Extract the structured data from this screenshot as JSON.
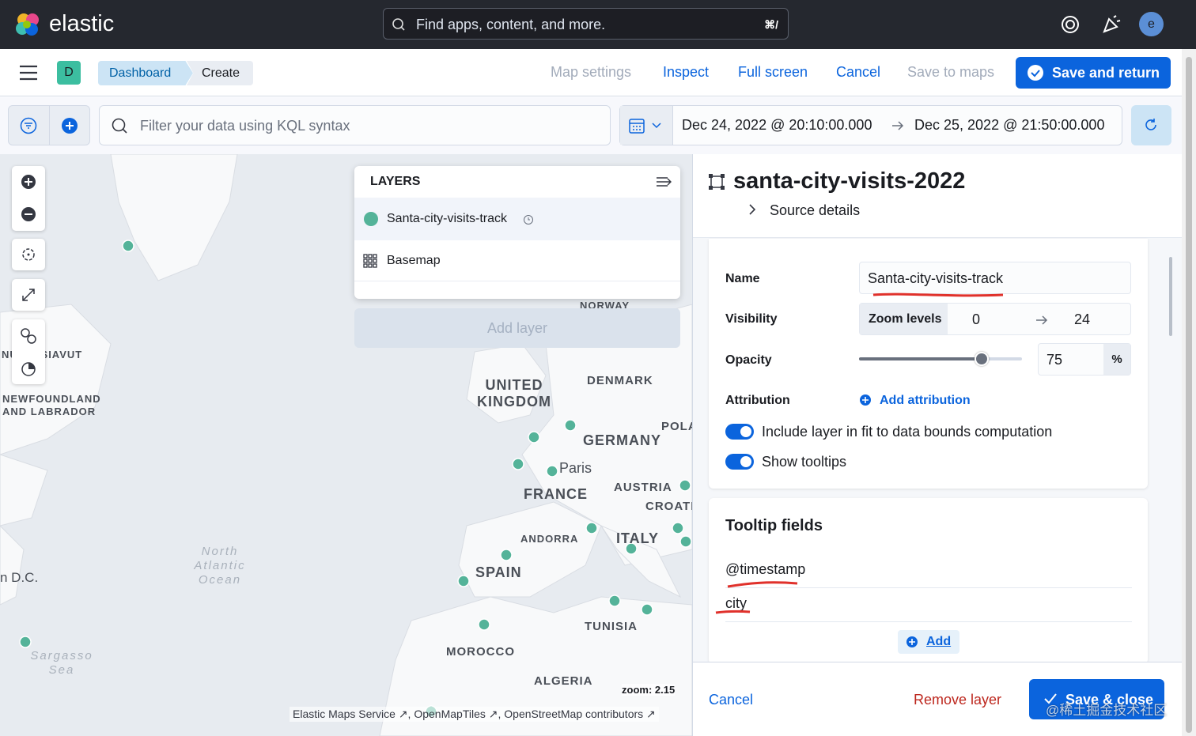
{
  "header": {
    "brand": "elastic",
    "search_placeholder": "Find apps, content, and more.",
    "shortcut": "⌘/",
    "avatar": "e"
  },
  "toolbar": {
    "space": "D",
    "breadcrumbs": [
      "Dashboard",
      "Create"
    ],
    "actions": [
      "Map settings",
      "Inspect",
      "Full screen",
      "Cancel",
      "Save to maps"
    ],
    "primary": "Save and return"
  },
  "query": {
    "placeholder": "Filter your data using KQL syntax",
    "start": "Dec 24, 2022 @ 20:10:00.000",
    "end": "Dec 25, 2022 @ 21:50:00.000"
  },
  "map": {
    "labels": [
      "NUNATSIAVUT",
      "NEWFOUNDLAND AND LABRADOR",
      "NORWAY",
      "UNITED KINGDOM",
      "DENMARK",
      "POLA",
      "GERMANY",
      "Paris",
      "AUSTRIA",
      "FRANCE",
      "CROATIA",
      "ANDORRA",
      "ITALY",
      "SPAIN",
      "TUNISIA",
      "MOROCCO",
      "ALGERIA",
      "n D.C.",
      "North Atlantic Ocean",
      "Sargasso Sea"
    ],
    "layers_title": "LAYERS",
    "layers": [
      "Santa-city-visits-track",
      "Basemap"
    ],
    "add_layer": "Add layer",
    "zoom": "zoom: 2.15",
    "attribution": [
      "Elastic Maps Service",
      "OpenMapTiles",
      "OpenStreetMap contributors"
    ]
  },
  "panel": {
    "title": "santa-city-visits-2022",
    "source_details": "Source details",
    "name_label": "Name",
    "name_value": "Santa-city-visits-track",
    "visibility_label": "Visibility",
    "zoom_levels": "Zoom levels",
    "zoom_min": 0,
    "zoom_max": 24,
    "opacity_label": "Opacity",
    "opacity": 75,
    "opacity_unit": "%",
    "attribution_label": "Attribution",
    "add_attribution": "Add attribution",
    "toggles": [
      "Include layer in fit to data bounds computation",
      "Show tooltips"
    ],
    "tooltip_title": "Tooltip fields",
    "tooltip_fields": [
      "@timestamp",
      "city"
    ],
    "add": "Add",
    "footer": {
      "cancel": "Cancel",
      "remove": "Remove layer",
      "save": "Save & close"
    }
  },
  "watermark": "@稀土掘金技术社区"
}
